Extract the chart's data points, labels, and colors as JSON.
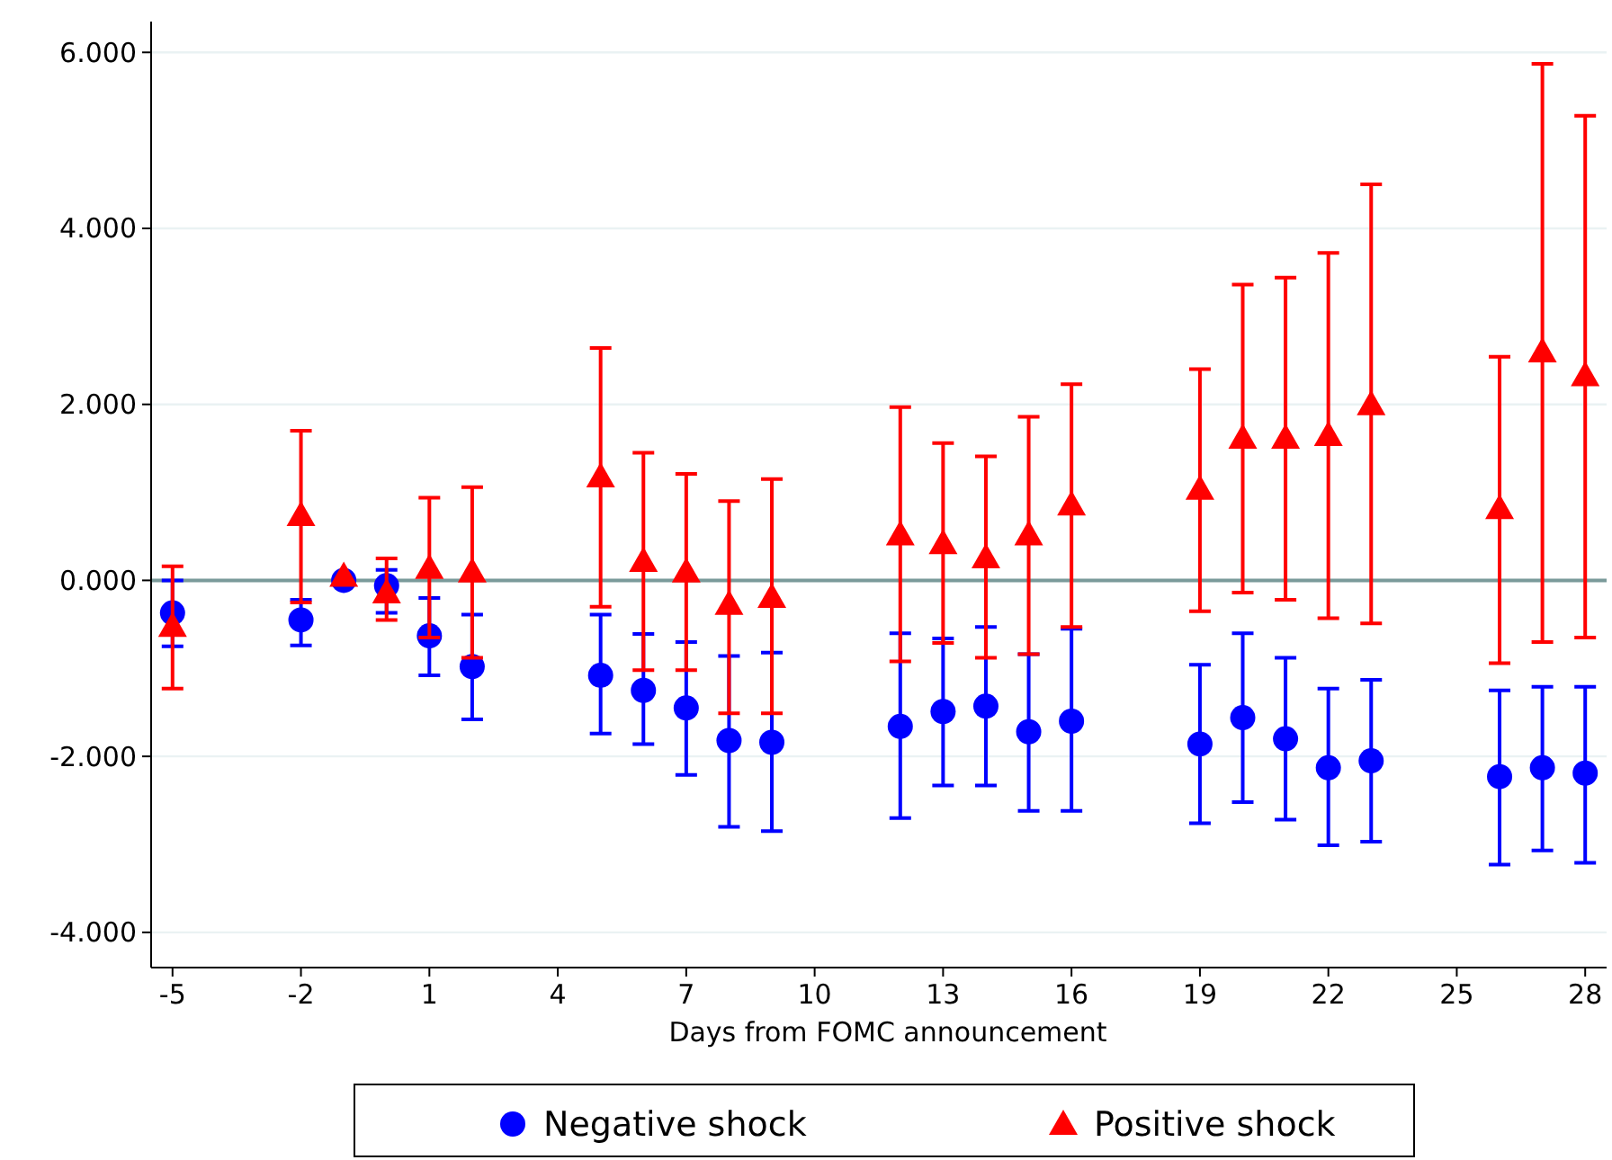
{
  "chart_data": {
    "type": "scatter",
    "xlabel": "Days from FOMC announcement",
    "x": [
      -5,
      -2,
      -1,
      0,
      1,
      2,
      5,
      6,
      7,
      8,
      9,
      12,
      13,
      14,
      15,
      16,
      19,
      20,
      21,
      22,
      23,
      26,
      27,
      28
    ],
    "series": [
      {
        "name": "Negative shock",
        "color": "#0000ff",
        "marker": "circle",
        "values": [
          -0.37,
          -0.45,
          0.0,
          -0.06,
          -0.63,
          -0.98,
          -1.08,
          -1.25,
          -1.45,
          -1.82,
          -1.84,
          -1.66,
          -1.49,
          -1.43,
          -1.72,
          -1.6,
          -1.86,
          -1.56,
          -1.8,
          -2.13,
          -2.05,
          -2.23,
          -2.13,
          -2.19
        ],
        "errors": [
          [
            -0.75,
            0.0
          ],
          [
            -0.74,
            -0.22
          ],
          null,
          [
            -0.37,
            0.12
          ],
          [
            -1.08,
            -0.2
          ],
          [
            -1.58,
            -0.39
          ],
          [
            -1.74,
            -0.39
          ],
          [
            -1.86,
            -0.61
          ],
          [
            -2.21,
            -0.7
          ],
          [
            -2.8,
            -0.86
          ],
          [
            -2.85,
            -0.82
          ],
          [
            -2.7,
            -0.6
          ],
          [
            -2.33,
            -0.66
          ],
          [
            -2.33,
            -0.53
          ],
          [
            -2.62,
            -0.84
          ],
          [
            -2.62,
            -0.55
          ],
          [
            -2.76,
            -0.96
          ],
          [
            -2.52,
            -0.6
          ],
          [
            -2.72,
            -0.88
          ],
          [
            -3.01,
            -1.23
          ],
          [
            -2.97,
            -1.13
          ],
          [
            -3.23,
            -1.25
          ],
          [
            -3.07,
            -1.21
          ],
          [
            -3.21,
            -1.21
          ]
        ]
      },
      {
        "name": "Positive shock",
        "color": "#ff0000",
        "marker": "triangle",
        "values": [
          -0.52,
          0.74,
          0.05,
          -0.14,
          0.14,
          0.1,
          1.18,
          0.22,
          0.1,
          -0.27,
          -0.19,
          0.52,
          0.42,
          0.26,
          0.52,
          0.86,
          1.04,
          1.62,
          1.62,
          1.65,
          2.0,
          0.82,
          2.6,
          2.33
        ],
        "errors": [
          [
            -1.23,
            0.16
          ],
          [
            -0.25,
            1.7
          ],
          null,
          [
            -0.45,
            0.25
          ],
          [
            -0.65,
            0.94
          ],
          [
            -0.88,
            1.06
          ],
          [
            -0.3,
            2.64
          ],
          [
            -1.02,
            1.45
          ],
          [
            -1.02,
            1.21
          ],
          [
            -1.51,
            0.9
          ],
          [
            -1.51,
            1.15
          ],
          [
            -0.92,
            1.97
          ],
          [
            -0.71,
            1.56
          ],
          [
            -0.88,
            1.41
          ],
          [
            -0.84,
            1.86
          ],
          [
            -0.53,
            2.23
          ],
          [
            -0.35,
            2.4
          ],
          [
            -0.14,
            3.36
          ],
          [
            -0.22,
            3.44
          ],
          [
            -0.43,
            3.72
          ],
          [
            -0.49,
            4.5
          ],
          [
            -0.94,
            2.54
          ],
          [
            -0.7,
            5.87
          ],
          [
            -0.65,
            5.28
          ]
        ]
      }
    ],
    "xlim": [
      -5.5,
      28.5
    ],
    "xticks": [
      -5,
      -2,
      1,
      4,
      7,
      10,
      13,
      16,
      19,
      22,
      25,
      28
    ],
    "ylim": [
      -4.4,
      6.35
    ],
    "yticks": [
      {
        "value": -4,
        "label": "-4.000"
      },
      {
        "value": -2,
        "label": "-2.000"
      },
      {
        "value": 0,
        "label": "0.000"
      },
      {
        "value": 2,
        "label": "2.000"
      },
      {
        "value": 4,
        "label": "4.000"
      },
      {
        "value": 6,
        "label": "6.000"
      }
    ],
    "ref_lines": [
      {
        "axis": "y",
        "value": 0,
        "color": "#7a9a9a"
      }
    ],
    "grid": "y",
    "legend": "bottom"
  }
}
